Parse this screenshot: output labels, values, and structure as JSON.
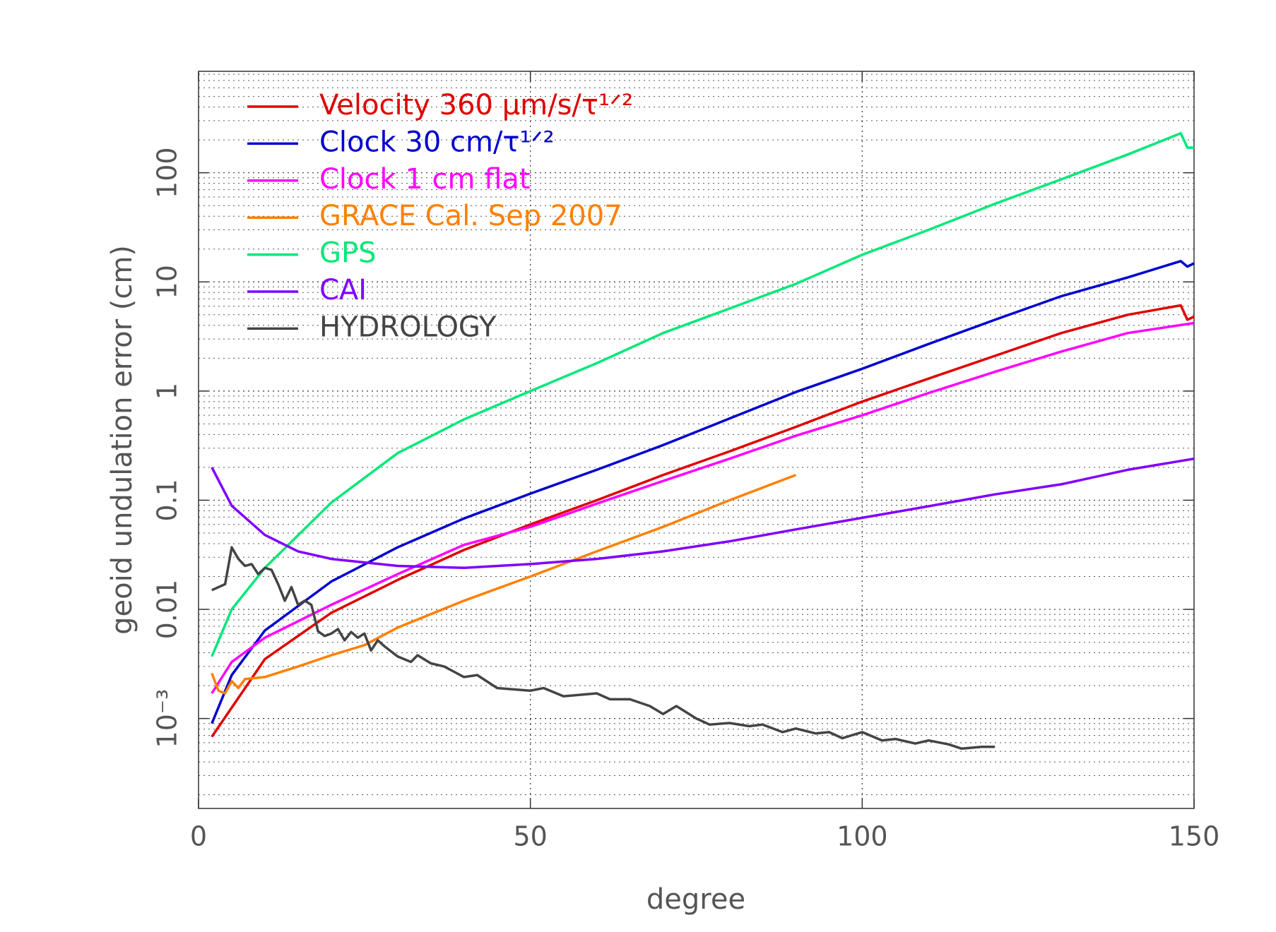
{
  "chart_data": {
    "type": "line",
    "xlabel": "degree",
    "ylabel": "geoid undulation error (cm)",
    "xlim": [
      0,
      150
    ],
    "xticks": [
      0,
      50,
      100,
      150
    ],
    "ylim": [
      0.00015,
      850
    ],
    "yscale": "log",
    "yticks": [
      {
        "value": 0.001,
        "label": "10⁻³"
      },
      0.01,
      0.1,
      1,
      10,
      100
    ],
    "grid": true,
    "minor_grid": true,
    "legend": "upper left",
    "series": [
      {
        "name": "Velocity 360 μm/s/τ¹ᐟ²",
        "color": "#e00000",
        "x": [
          2,
          10,
          20,
          30,
          40,
          50,
          60,
          70,
          80,
          90,
          100,
          110,
          120,
          130,
          140,
          148,
          149,
          150
        ],
        "values": [
          0.00068,
          0.0035,
          0.0093,
          0.0186,
          0.035,
          0.06,
          0.1,
          0.17,
          0.28,
          0.47,
          0.8,
          1.3,
          2.1,
          3.4,
          5.0,
          6.1,
          4.5,
          4.8
        ]
      },
      {
        "name": "Clock 30 cm/τ¹ᐟ²",
        "color": "#0000d0",
        "x": [
          2,
          5,
          10,
          20,
          30,
          40,
          50,
          60,
          70,
          80,
          90,
          100,
          110,
          120,
          130,
          140,
          148,
          149,
          150
        ],
        "values": [
          0.0009,
          0.0025,
          0.0064,
          0.018,
          0.037,
          0.068,
          0.115,
          0.19,
          0.32,
          0.56,
          0.98,
          1.6,
          2.7,
          4.5,
          7.4,
          11,
          15.5,
          13.8,
          14.8
        ]
      },
      {
        "name": "Clock 1 cm flat",
        "color": "#ff00ff",
        "x": [
          2,
          5,
          10,
          20,
          30,
          40,
          50,
          60,
          70,
          80,
          90,
          100,
          110,
          120,
          130,
          140,
          150
        ],
        "values": [
          0.0017,
          0.0033,
          0.0055,
          0.011,
          0.021,
          0.039,
          0.057,
          0.093,
          0.15,
          0.24,
          0.39,
          0.6,
          0.96,
          1.5,
          2.3,
          3.4,
          4.2
        ]
      },
      {
        "name": "GRACE Cal. Sep 2007",
        "color": "#ff8000",
        "x": [
          2,
          3,
          4,
          5,
          6,
          7,
          10,
          15,
          20,
          25,
          30,
          40,
          50,
          60,
          70,
          80,
          90
        ],
        "values": [
          0.0026,
          0.0018,
          0.0017,
          0.0022,
          0.0019,
          0.0023,
          0.0024,
          0.003,
          0.0038,
          0.0047,
          0.0068,
          0.012,
          0.02,
          0.034,
          0.057,
          0.1,
          0.17
        ]
      },
      {
        "name": "GPS",
        "color": "#00e878",
        "x": [
          2,
          5,
          10,
          20,
          30,
          40,
          50,
          60,
          70,
          80,
          90,
          100,
          110,
          120,
          130,
          140,
          148,
          149,
          150
        ],
        "values": [
          0.0037,
          0.01,
          0.024,
          0.095,
          0.27,
          0.55,
          1.0,
          1.8,
          3.4,
          5.7,
          9.6,
          17.7,
          30,
          52,
          87,
          147,
          230,
          170,
          170
        ]
      },
      {
        "name": "CAI",
        "color": "#8000ff",
        "x": [
          2,
          5,
          10,
          15,
          20,
          30,
          40,
          50,
          60,
          70,
          80,
          90,
          100,
          110,
          120,
          130,
          140,
          150
        ],
        "values": [
          0.2,
          0.089,
          0.048,
          0.034,
          0.029,
          0.025,
          0.024,
          0.026,
          0.029,
          0.034,
          0.042,
          0.054,
          0.069,
          0.088,
          0.113,
          0.14,
          0.19,
          0.24
        ]
      },
      {
        "name": "HYDROLOGY",
        "color": "#444444",
        "x": [
          2,
          4,
          5,
          6,
          7,
          8,
          9,
          10,
          11,
          12,
          13,
          14,
          15,
          16,
          17,
          18,
          19,
          20,
          21,
          22,
          23,
          24,
          25,
          26,
          27,
          28,
          30,
          32,
          33,
          35,
          37,
          40,
          42,
          45,
          50,
          52,
          55,
          60,
          62,
          65,
          68,
          70,
          72,
          75,
          77,
          80,
          83,
          85,
          88,
          90,
          93,
          95,
          97,
          100,
          103,
          105,
          108,
          110,
          113,
          115,
          118,
          120
        ],
        "values": [
          0.015,
          0.017,
          0.037,
          0.029,
          0.025,
          0.026,
          0.021,
          0.024,
          0.023,
          0.017,
          0.012,
          0.016,
          0.011,
          0.012,
          0.011,
          0.0063,
          0.0057,
          0.006,
          0.0066,
          0.0052,
          0.0062,
          0.0055,
          0.006,
          0.0042,
          0.0052,
          0.0046,
          0.0037,
          0.0033,
          0.0038,
          0.0032,
          0.003,
          0.0024,
          0.0025,
          0.0019,
          0.0018,
          0.0019,
          0.0016,
          0.0017,
          0.0015,
          0.0015,
          0.0013,
          0.0011,
          0.0013,
          0.001,
          0.00088,
          0.00091,
          0.00085,
          0.00088,
          0.00075,
          0.00081,
          0.00073,
          0.00075,
          0.00066,
          0.00075,
          0.00063,
          0.00065,
          0.00059,
          0.00063,
          0.00058,
          0.00053,
          0.00055,
          0.00055
        ]
      }
    ]
  }
}
